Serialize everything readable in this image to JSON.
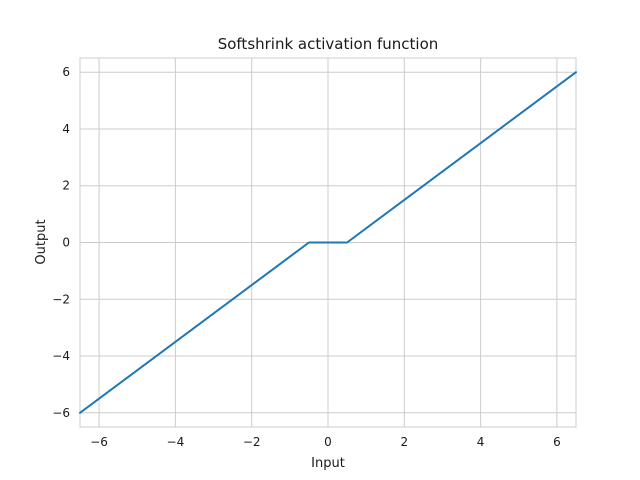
{
  "chart_data": {
    "type": "line",
    "title": "Softshrink activation function",
    "xlabel": "Input",
    "ylabel": "Output",
    "xlim": [
      -6.5,
      6.5
    ],
    "ylim": [
      -6.5,
      6.5
    ],
    "xticks": [
      -6,
      -4,
      -2,
      0,
      2,
      4,
      6
    ],
    "yticks": [
      -6,
      -4,
      -2,
      0,
      2,
      4,
      6
    ],
    "xtick_labels": [
      "−6",
      "−4",
      "−2",
      "0",
      "2",
      "4",
      "6"
    ],
    "ytick_labels": [
      "−6",
      "−4",
      "−2",
      "0",
      "2",
      "4",
      "6"
    ],
    "grid": true,
    "series": [
      {
        "color": "#1f77b4",
        "x": [
          -6.5,
          -0.5,
          0.5,
          6.5
        ],
        "y": [
          -6.0,
          0.0,
          0.0,
          6.0
        ]
      }
    ]
  }
}
